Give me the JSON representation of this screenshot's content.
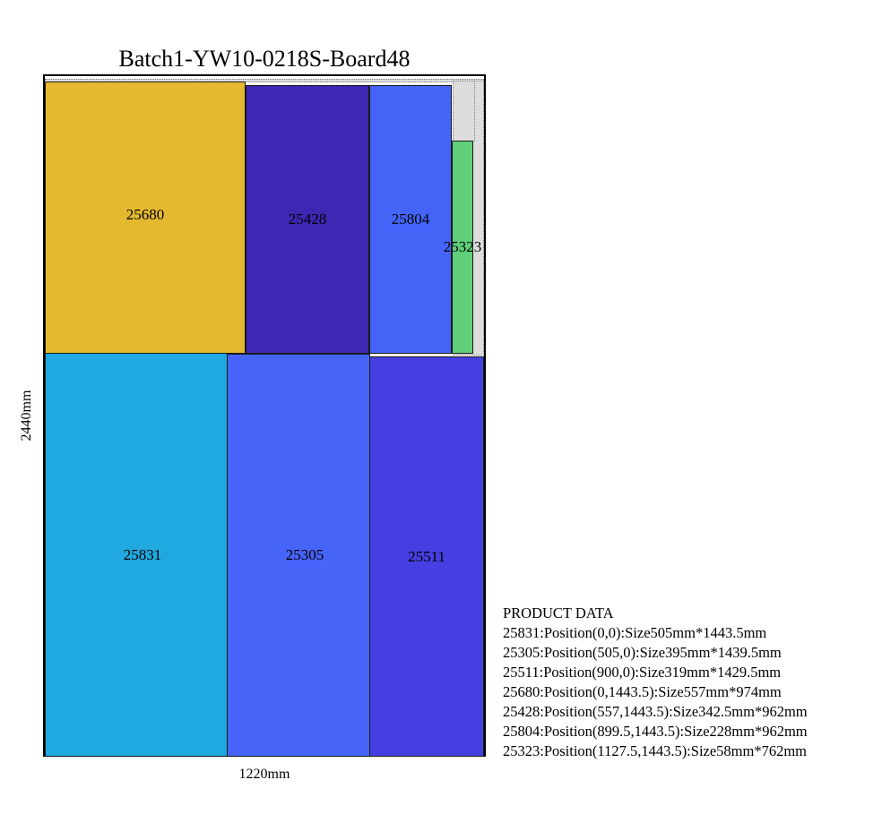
{
  "title": "Batch1-YW10-0218S-Board48",
  "board": {
    "width_label": "1220mm",
    "height_label": "2440mm"
  },
  "pieces": [
    {
      "id": "25831",
      "color": "#20a8e0"
    },
    {
      "id": "25305",
      "color": "#4764f8"
    },
    {
      "id": "25511",
      "color": "#453ee0"
    },
    {
      "id": "25680",
      "color": "#e5b92f"
    },
    {
      "id": "25428",
      "color": "#3e27b3"
    },
    {
      "id": "25804",
      "color": "#4464f8"
    },
    {
      "id": "25323",
      "color": "#5fcf79"
    }
  ],
  "waste_color": "#dddddd",
  "product_data": {
    "heading": "PRODUCT DATA",
    "lines": [
      "25831:Position(0,0):Size505mm*1443.5mm",
      "25305:Position(505,0):Size395mm*1439.5mm",
      "25511:Position(900,0):Size319mm*1429.5mm",
      "25680:Position(0,1443.5):Size557mm*974mm",
      "25428:Position(557,1443.5):Size342.5mm*962mm",
      "25804:Position(899.5,1443.5):Size228mm*962mm",
      "25323:Position(1127.5,1443.5):Size58mm*762mm"
    ]
  }
}
